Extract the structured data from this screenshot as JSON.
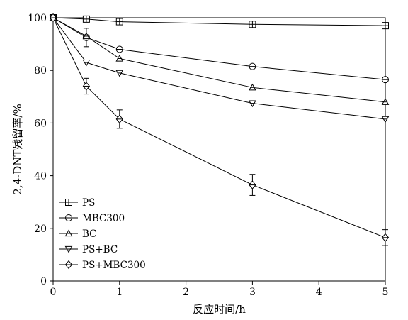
{
  "chart_data": {
    "type": "line",
    "xlabel": "反应时间/h",
    "ylabel": "2,4-DNT残留率/%",
    "xlim": [
      0,
      5
    ],
    "ylim": [
      0,
      100
    ],
    "xticks": [
      0,
      1,
      2,
      3,
      4,
      5
    ],
    "yticks": [
      0,
      20,
      40,
      60,
      80,
      100
    ],
    "grid": false,
    "legend_position": "bottom-left",
    "series": [
      {
        "name": "PS",
        "marker": "square",
        "x": [
          0,
          0.5,
          1,
          3,
          5
        ],
        "y": [
          100,
          99.5,
          98.5,
          97.5,
          97
        ],
        "err": [
          0,
          0,
          0,
          0,
          0
        ]
      },
      {
        "name": "MBC300",
        "marker": "circle",
        "x": [
          0,
          0.5,
          1,
          3,
          5
        ],
        "y": [
          100,
          92.5,
          88,
          81.5,
          76.5
        ],
        "err": [
          0,
          3.5,
          0,
          0,
          0
        ]
      },
      {
        "name": "BC",
        "marker": "triangle-up",
        "x": [
          0,
          0.5,
          1,
          3,
          5
        ],
        "y": [
          100,
          93,
          84.5,
          73.5,
          68
        ],
        "err": [
          0,
          0,
          0,
          0,
          0
        ]
      },
      {
        "name": "PS+BC",
        "marker": "triangle-down",
        "x": [
          0,
          0.5,
          1,
          3,
          5
        ],
        "y": [
          100,
          83,
          79,
          67.5,
          61.5
        ],
        "err": [
          0,
          0,
          0,
          0,
          0
        ]
      },
      {
        "name": "PS+MBC300",
        "marker": "diamond",
        "x": [
          0,
          0.5,
          1,
          3,
          5
        ],
        "y": [
          100,
          74,
          61.5,
          36.5,
          16.5
        ],
        "err": [
          0,
          3,
          3.5,
          4,
          3
        ]
      }
    ]
  }
}
